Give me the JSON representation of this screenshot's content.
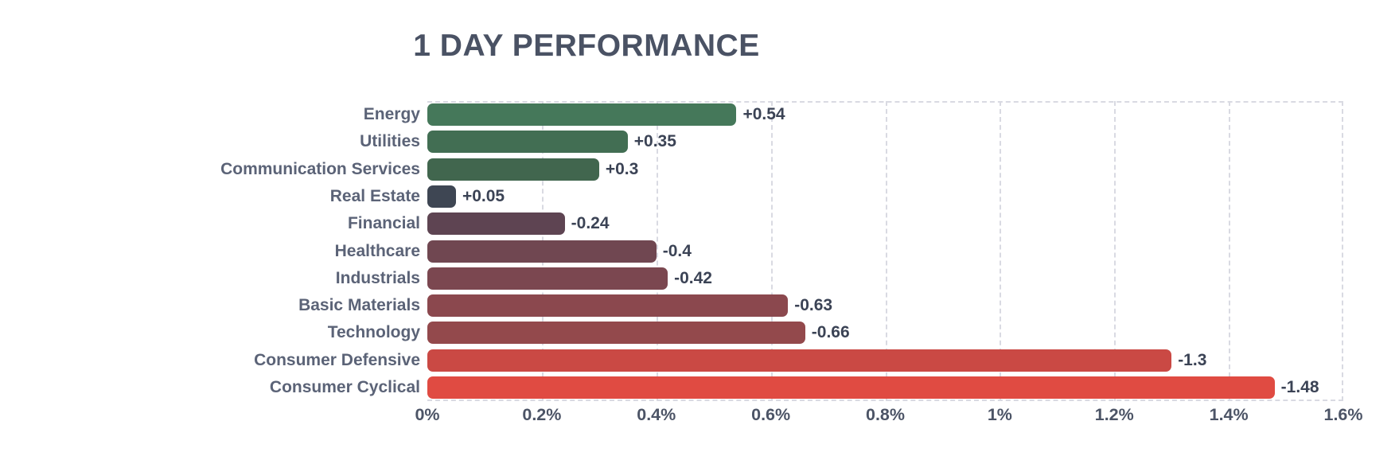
{
  "title": "1 DAY PERFORMANCE",
  "colors": {
    "background": "#ffffff",
    "title_text": "#4a5264",
    "category_text": "#5b6377",
    "value_text": "#3b4355",
    "axis_text": "#4c5466",
    "grid": "#d9dae2"
  },
  "chart_data": {
    "type": "bar",
    "orientation": "horizontal",
    "title": "1 DAY PERFORMANCE",
    "categories": [
      "Energy",
      "Utilities",
      "Communication Services",
      "Real Estate",
      "Financial",
      "Healthcare",
      "Industrials",
      "Basic Materials",
      "Technology",
      "Consumer Defensive",
      "Consumer Cyclical"
    ],
    "values": [
      0.54,
      0.35,
      0.3,
      0.05,
      -0.24,
      -0.4,
      -0.42,
      -0.63,
      -0.66,
      -1.3,
      -1.48
    ],
    "value_labels": [
      "+0.54",
      "+0.35",
      "+0.3",
      "+0.05",
      "-0.24",
      "-0.4",
      "-0.42",
      "-0.63",
      "-0.66",
      "-1.3",
      "-1.48"
    ],
    "bar_colors": [
      "#45785a",
      "#426e53",
      "#41664e",
      "#3e4653",
      "#5e4452",
      "#704751",
      "#7b4750",
      "#8b484e",
      "#93494c",
      "#ca4944",
      "#e04b42"
    ],
    "bar_length_basis": "absolute value of percent change",
    "xlabel": "",
    "ylabel": "",
    "xlim": [
      0,
      1.6
    ],
    "x_ticks": [
      0,
      0.2,
      0.4,
      0.6,
      0.8,
      1,
      1.2,
      1.4,
      1.6
    ],
    "x_tick_labels": [
      "0%",
      "0.2%",
      "0.4%",
      "0.6%",
      "0.8%",
      "1%",
      "1.2%",
      "1.4%",
      "1.6%"
    ],
    "grid": "dashed vertical gridlines, dashed top/right/bottom plot border",
    "legend": "none"
  }
}
